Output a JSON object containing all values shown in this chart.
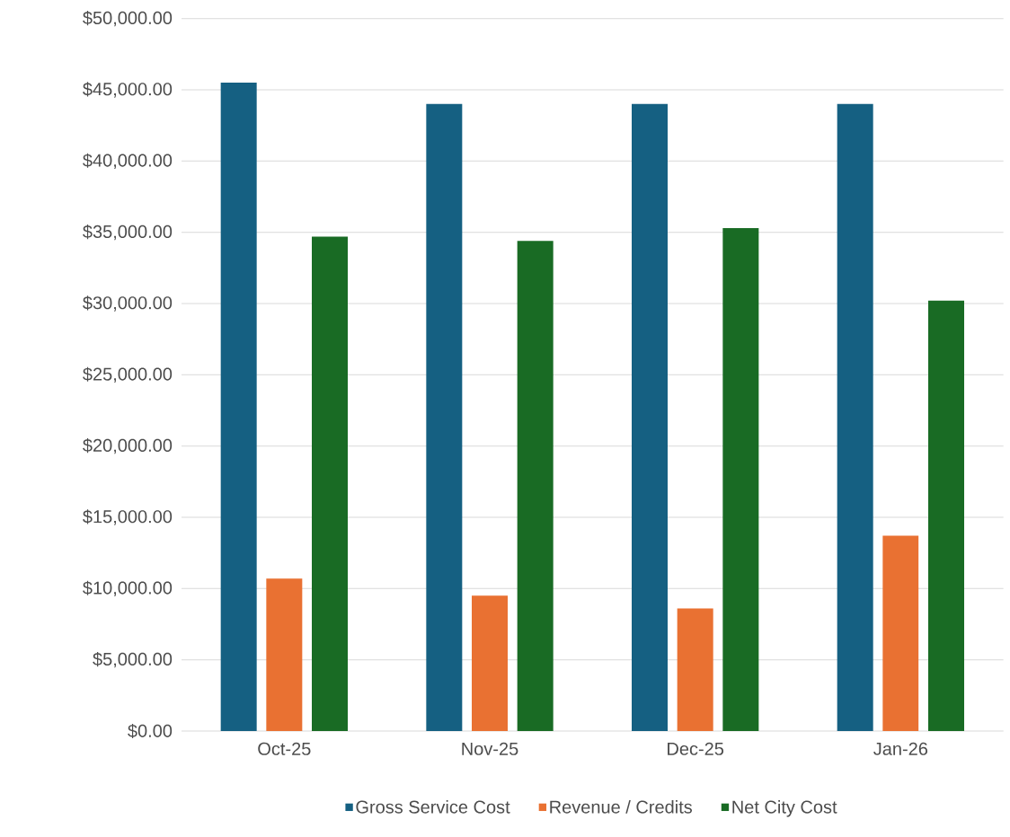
{
  "chart_data": {
    "type": "bar",
    "categories": [
      "Oct-25",
      "Nov-25",
      "Dec-25",
      "Jan-26"
    ],
    "series": [
      {
        "name": "Gross Service Cost",
        "color": "#156082",
        "values": [
          45500,
          44000,
          44000,
          44000
        ]
      },
      {
        "name": "Revenue / Credits",
        "color": "#e97132",
        "values": [
          10700,
          9500,
          8600,
          13700
        ]
      },
      {
        "name": "Net City Cost",
        "color": "#196b24",
        "values": [
          34700,
          34400,
          35300,
          30200
        ]
      }
    ],
    "ylim": [
      0,
      50000
    ],
    "yticks": [
      {
        "value": 0,
        "label": "$0.00"
      },
      {
        "value": 5000,
        "label": "$5,000.00"
      },
      {
        "value": 10000,
        "label": "$10,000.00"
      },
      {
        "value": 15000,
        "label": "$15,000.00"
      },
      {
        "value": 20000,
        "label": "$20,000.00"
      },
      {
        "value": 25000,
        "label": "$25,000.00"
      },
      {
        "value": 30000,
        "label": "$30,000.00"
      },
      {
        "value": 35000,
        "label": "$35,000.00"
      },
      {
        "value": 40000,
        "label": "$40,000.00"
      },
      {
        "value": 45000,
        "label": "$45,000.00"
      },
      {
        "value": 50000,
        "label": "$50,000.00"
      }
    ],
    "grid": "y",
    "legend": "bottom"
  }
}
